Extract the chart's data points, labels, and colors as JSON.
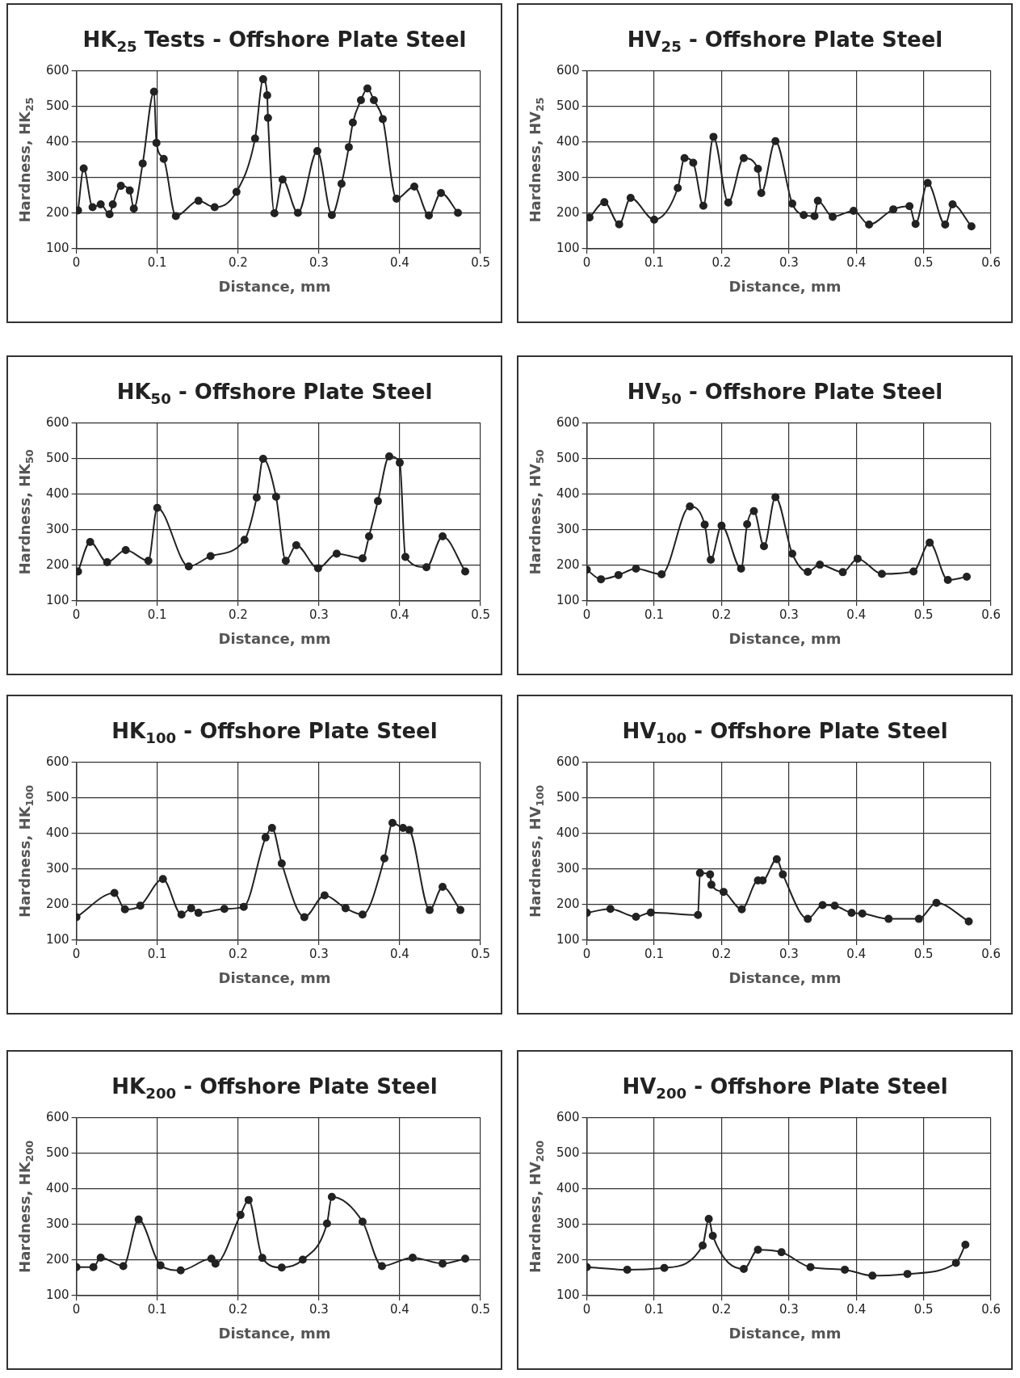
{
  "chart_data": [
    {
      "type": "line",
      "title": "HK$_{25}$ Tests - Offshore Plate Steel",
      "xlabel": "Distance, mm",
      "ylabel": "Hardness, HK$_{25}$",
      "color": "#222222",
      "marker": "circle",
      "grid": true,
      "xlim": [
        0,
        0.5
      ],
      "xticks": [
        0,
        0.1,
        0.2,
        0.3,
        0.4,
        0.5
      ],
      "ylim": [
        100,
        600
      ],
      "yticks": [
        100,
        200,
        300,
        400,
        500,
        600
      ],
      "x": [
        0.002,
        0.009,
        0.02,
        0.03,
        0.041,
        0.045,
        0.055,
        0.066,
        0.071,
        0.082,
        0.096,
        0.099,
        0.108,
        0.123,
        0.151,
        0.171,
        0.198,
        0.221,
        0.231,
        0.236,
        0.237,
        0.245,
        0.255,
        0.274,
        0.298,
        0.316,
        0.328,
        0.337,
        0.342,
        0.352,
        0.36,
        0.368,
        0.379,
        0.396,
        0.418,
        0.436,
        0.451,
        0.472
      ],
      "values": [
        208,
        326,
        217,
        225,
        197,
        225,
        277,
        264,
        213,
        340,
        542,
        398,
        353,
        192,
        235,
        217,
        260,
        410,
        577,
        532,
        468,
        200,
        295,
        201,
        375,
        195,
        283,
        386,
        455,
        518,
        551,
        518,
        465,
        241,
        275,
        194,
        257,
        201
      ]
    },
    {
      "type": "line",
      "title": "HV$_{25}$ - Offshore Plate Steel",
      "xlabel": "Distance, mm",
      "ylabel": "Hardness, HV$_{25}$",
      "color": "#222222",
      "marker": "circle",
      "grid": true,
      "xlim": [
        0,
        0.6
      ],
      "xticks": [
        0,
        0.1,
        0.2,
        0.3,
        0.4,
        0.5,
        0.6
      ],
      "ylim": [
        100,
        600
      ],
      "yticks": [
        100,
        200,
        300,
        400,
        500,
        600
      ],
      "x": [
        0.004,
        0.026,
        0.048,
        0.065,
        0.1,
        0.135,
        0.145,
        0.158,
        0.173,
        0.188,
        0.21,
        0.233,
        0.254,
        0.259,
        0.28,
        0.305,
        0.322,
        0.338,
        0.343,
        0.365,
        0.396,
        0.419,
        0.455,
        0.479,
        0.488,
        0.506,
        0.532,
        0.543,
        0.571
      ],
      "values": [
        188,
        231,
        169,
        243,
        182,
        271,
        355,
        342,
        221,
        415,
        230,
        355,
        325,
        257,
        403,
        227,
        195,
        192,
        235,
        190,
        207,
        168,
        211,
        220,
        170,
        285,
        168,
        225,
        163
      ]
    },
    {
      "type": "line",
      "title": "HK$_{50}$ - Offshore Plate Steel",
      "xlabel": "Distance, mm",
      "ylabel": "Hardness, HK$_{50}$",
      "color": "#222222",
      "marker": "circle",
      "grid": true,
      "xlim": [
        0,
        0.5
      ],
      "xticks": [
        0,
        0.1,
        0.2,
        0.3,
        0.4,
        0.5
      ],
      "ylim": [
        100,
        600
      ],
      "yticks": [
        100,
        200,
        300,
        400,
        500,
        600
      ],
      "x": [
        0.002,
        0.017,
        0.038,
        0.061,
        0.089,
        0.1,
        0.139,
        0.166,
        0.208,
        0.223,
        0.231,
        0.247,
        0.259,
        0.272,
        0.299,
        0.322,
        0.354,
        0.362,
        0.373,
        0.387,
        0.4,
        0.407,
        0.433,
        0.453,
        0.481
      ],
      "values": [
        183,
        266,
        209,
        243,
        213,
        362,
        197,
        226,
        272,
        391,
        500,
        393,
        213,
        257,
        192,
        233,
        220,
        282,
        381,
        507,
        489,
        224,
        195,
        282,
        183
      ]
    },
    {
      "type": "line",
      "title": "HV$_{50}$ - Offshore Plate Steel",
      "xlabel": "Distance, mm",
      "ylabel": "Hardness, HV$_{50}$",
      "color": "#222222",
      "marker": "circle",
      "grid": true,
      "xlim": [
        0,
        0.6
      ],
      "xticks": [
        0,
        0.1,
        0.2,
        0.3,
        0.4,
        0.5,
        0.6
      ],
      "ylim": [
        100,
        600
      ],
      "yticks": [
        100,
        200,
        300,
        400,
        500,
        600
      ],
      "x": [
        0,
        0.021,
        0.047,
        0.073,
        0.111,
        0.153,
        0.175,
        0.184,
        0.2,
        0.229,
        0.238,
        0.248,
        0.263,
        0.28,
        0.305,
        0.328,
        0.346,
        0.38,
        0.402,
        0.438,
        0.485,
        0.509,
        0.536,
        0.564
      ],
      "values": [
        188,
        161,
        173,
        191,
        175,
        366,
        315,
        216,
        312,
        191,
        316,
        353,
        254,
        392,
        233,
        182,
        202,
        181,
        219,
        176,
        183,
        264,
        159,
        168
      ]
    },
    {
      "type": "line",
      "title": "HK$_{100}$ - Offshore Plate Steel",
      "xlabel": "Distance, mm",
      "ylabel": "Hardness, HK$_{100}$",
      "color": "#222222",
      "marker": "circle",
      "grid": true,
      "xlim": [
        0,
        0.5
      ],
      "xticks": [
        0,
        0.1,
        0.2,
        0.3,
        0.4,
        0.5
      ],
      "ylim": [
        100,
        600
      ],
      "yticks": [
        100,
        200,
        300,
        400,
        500,
        600
      ],
      "x": [
        0,
        0.047,
        0.06,
        0.079,
        0.107,
        0.13,
        0.142,
        0.151,
        0.183,
        0.207,
        0.234,
        0.242,
        0.254,
        0.282,
        0.307,
        0.333,
        0.354,
        0.381,
        0.391,
        0.404,
        0.412,
        0.437,
        0.453,
        0.475
      ],
      "values": [
        165,
        233,
        187,
        197,
        272,
        172,
        190,
        177,
        188,
        194,
        389,
        416,
        316,
        165,
        226,
        190,
        172,
        330,
        430,
        416,
        410,
        185,
        250,
        185
      ]
    },
    {
      "type": "line",
      "title": "HV$_{100}$ - Offshore Plate Steel",
      "xlabel": "Distance, mm",
      "ylabel": "Hardness, HV$_{100}$",
      "color": "#222222",
      "marker": "circle",
      "grid": true,
      "xlim": [
        0,
        0.6
      ],
      "xticks": [
        0,
        0.1,
        0.2,
        0.3,
        0.4,
        0.5,
        0.6
      ],
      "ylim": [
        100,
        600
      ],
      "yticks": [
        100,
        200,
        300,
        400,
        500,
        600
      ],
      "x": [
        0,
        0.035,
        0.073,
        0.095,
        0.165,
        0.168,
        0.183,
        0.185,
        0.203,
        0.23,
        0.254,
        0.261,
        0.282,
        0.291,
        0.328,
        0.35,
        0.368,
        0.393,
        0.409,
        0.448,
        0.493,
        0.519,
        0.567
      ],
      "values": [
        177,
        188,
        166,
        178,
        171,
        289,
        285,
        256,
        236,
        187,
        268,
        268,
        328,
        285,
        160,
        199,
        197,
        177,
        175,
        160,
        160,
        205,
        153
      ]
    },
    {
      "type": "line",
      "title": "HK$_{200}$ - Offshore Plate Steel",
      "xlabel": "Distance, mm",
      "ylabel": "Hardness, HK$_{200}$",
      "color": "#222222",
      "marker": "circle",
      "grid": true,
      "xlim": [
        0,
        0.5
      ],
      "xticks": [
        0,
        0.1,
        0.2,
        0.3,
        0.4,
        0.5
      ],
      "ylim": [
        100,
        600
      ],
      "yticks": [
        100,
        200,
        300,
        400,
        500,
        600
      ],
      "x": [
        0,
        0.021,
        0.03,
        0.058,
        0.077,
        0.104,
        0.129,
        0.167,
        0.172,
        0.203,
        0.213,
        0.23,
        0.254,
        0.28,
        0.31,
        0.316,
        0.354,
        0.378,
        0.416,
        0.453,
        0.481
      ],
      "values": [
        180,
        180,
        207,
        183,
        314,
        185,
        171,
        204,
        190,
        327,
        369,
        206,
        179,
        201,
        303,
        378,
        308,
        183,
        207,
        190,
        204
      ]
    },
    {
      "type": "line",
      "title": "HV$_{200}$ - Offshore Plate Steel",
      "xlabel": "Distance, mm",
      "ylabel": "Hardness, HV$_{200}$",
      "color": "#222222",
      "marker": "circle",
      "grid": true,
      "xlim": [
        0,
        0.6
      ],
      "xticks": [
        0,
        0.1,
        0.2,
        0.3,
        0.4,
        0.5,
        0.6
      ],
      "ylim": [
        100,
        600
      ],
      "yticks": [
        100,
        200,
        300,
        400,
        500,
        600
      ],
      "x": [
        0,
        0.06,
        0.115,
        0.172,
        0.181,
        0.187,
        0.233,
        0.254,
        0.289,
        0.332,
        0.383,
        0.424,
        0.476,
        0.548,
        0.562
      ],
      "values": [
        180,
        173,
        178,
        241,
        316,
        268,
        175,
        229,
        222,
        180,
        173,
        156,
        161,
        192,
        243
      ]
    }
  ]
}
